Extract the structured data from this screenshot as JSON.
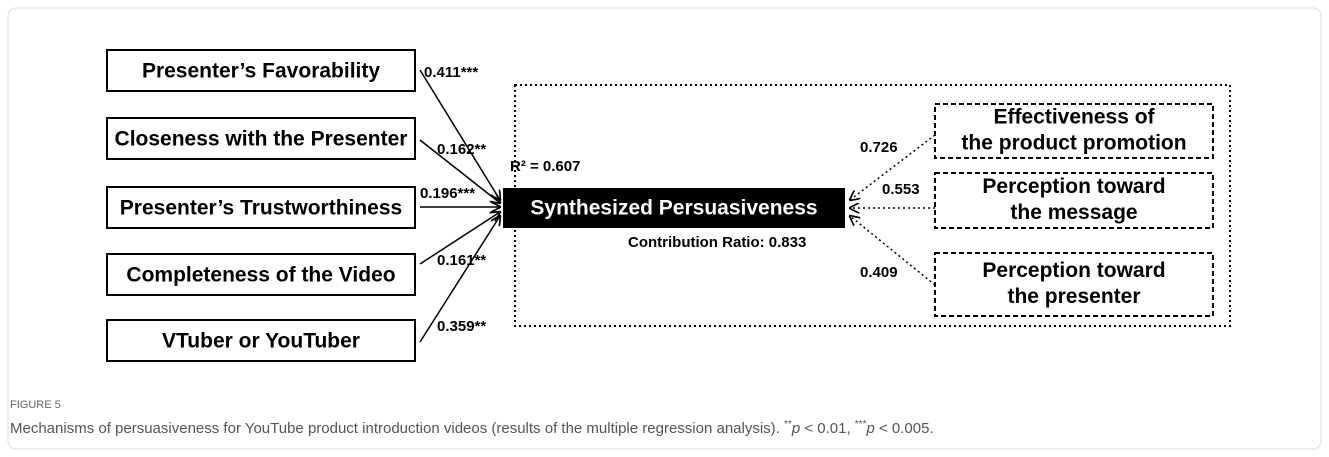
{
  "figure": {
    "predictors": [
      "Presenter’s Favorability",
      "Closeness with the Presenter",
      "Presenter’s Trustworthiness",
      "Completeness of the Video",
      "VTuber or YouTuber"
    ],
    "predictor_coefficients": [
      "0.411***",
      "0.162**",
      "0.196***",
      "0.161**",
      "0.359**"
    ],
    "outcome": "Synthesized Persuasiveness",
    "r_squared": "R² = 0.607",
    "contribution_ratio": "Contribution Ratio: 0.833",
    "components": [
      [
        "Effectiveness of",
        "the product promotion"
      ],
      [
        "Perception toward",
        "the message"
      ],
      [
        "Perception toward",
        "the presenter"
      ]
    ],
    "component_loadings": [
      "0.726",
      "0.553",
      "0.409"
    ]
  },
  "caption": {
    "label": "FIGURE 5",
    "text": "Mechanisms of persuasiveness for YouTube product introduction videos (results of the multiple regression analysis). ",
    "sup1": "**",
    "p1": "p",
    "t1": " < 0.01, ",
    "sup2": "***",
    "p2": "p",
    "t2": " < 0.005."
  }
}
